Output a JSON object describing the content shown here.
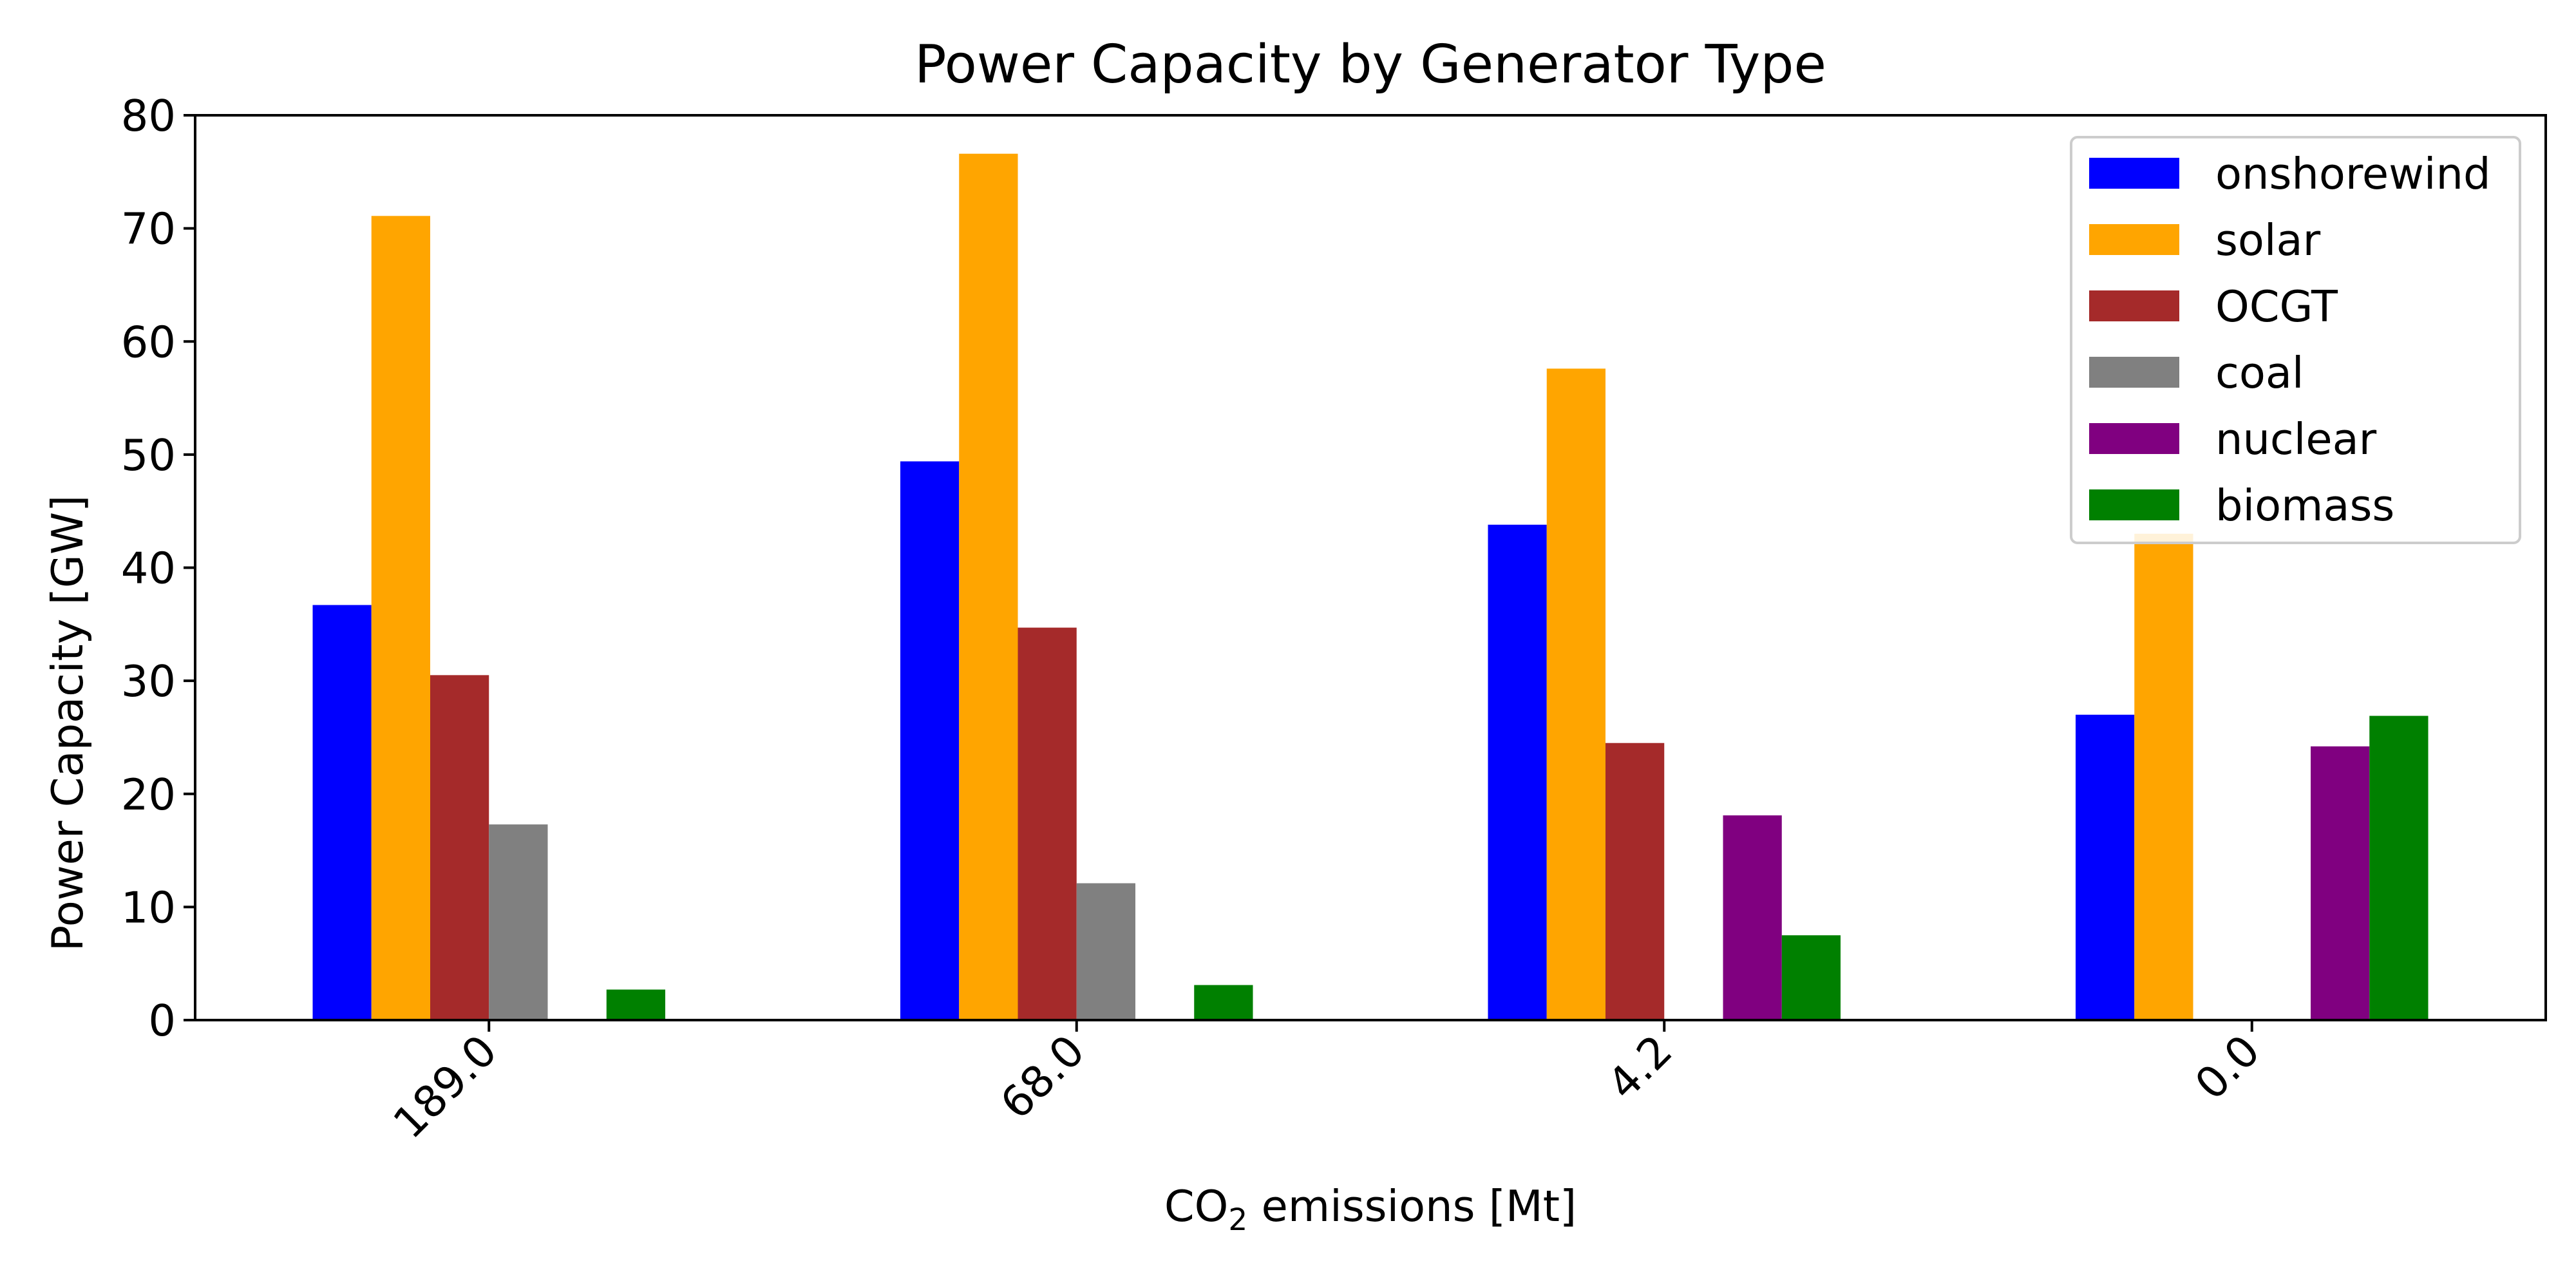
{
  "chart_data": {
    "type": "bar",
    "title": "Power Capacity by Generator Type",
    "xlabel": {
      "main": "CO",
      "subscript": "2",
      "rest": " emissions [Mt]"
    },
    "ylabel": "Power Capacity [GW]",
    "categories": [
      "189.0",
      "68.0",
      "4.2",
      "0.0"
    ],
    "ylim": [
      0,
      80
    ],
    "yticks": [
      0,
      10,
      20,
      30,
      40,
      50,
      60,
      70,
      80
    ],
    "grid": false,
    "legend_position": "top-right",
    "series": [
      {
        "name": "onshorewind",
        "color": "#0000ff",
        "values": [
          36.7,
          49.4,
          43.8,
          27.0
        ]
      },
      {
        "name": "solar",
        "color": "#ffa500",
        "values": [
          71.1,
          76.6,
          57.6,
          43.0
        ]
      },
      {
        "name": "OCGT",
        "color": "#a52a2a",
        "values": [
          30.5,
          34.7,
          24.5,
          0.0
        ]
      },
      {
        "name": "coal",
        "color": "#808080",
        "values": [
          17.3,
          12.1,
          0.0,
          0.0
        ]
      },
      {
        "name": "nuclear",
        "color": "#800080",
        "values": [
          0.0,
          0.0,
          18.1,
          24.2
        ]
      },
      {
        "name": "biomass",
        "color": "#008000",
        "values": [
          2.7,
          3.1,
          7.5,
          26.9
        ]
      }
    ]
  }
}
